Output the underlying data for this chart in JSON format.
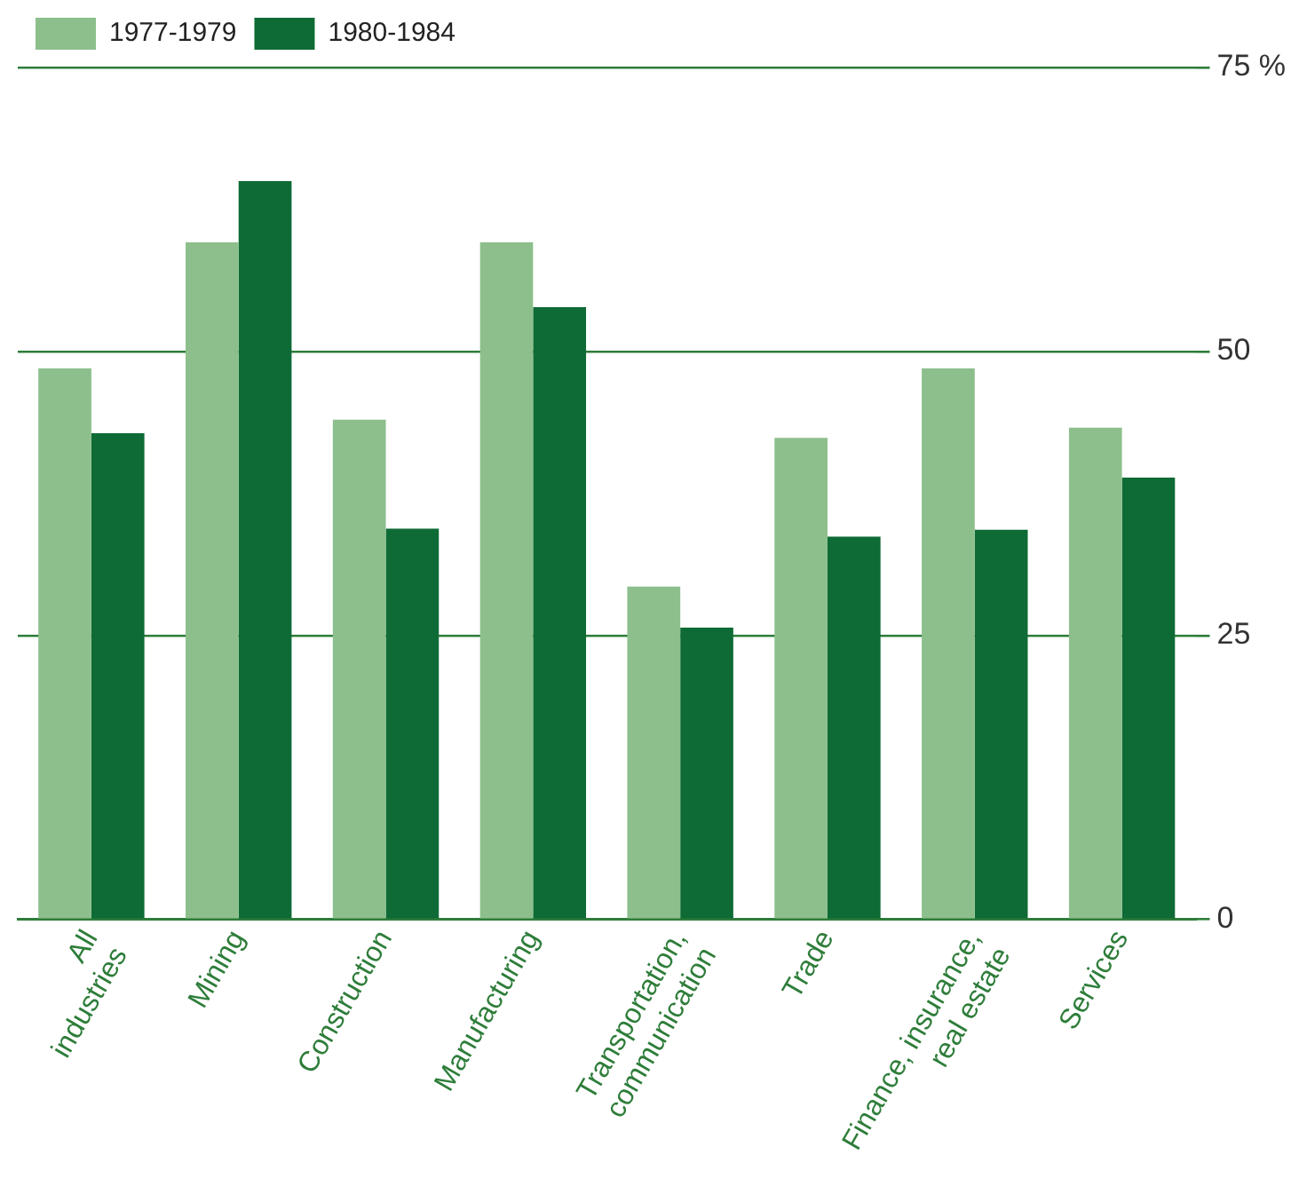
{
  "chart_data": {
    "type": "bar",
    "categories": [
      "All\nindustries",
      "Mining",
      "Construction",
      "Manufacturing",
      "Transportation,\ncommunication",
      "Trade",
      "Finance, insurance,\nreal estate",
      "Services"
    ],
    "series": [
      {
        "name": "1977-1979",
        "color": "#8cbf8c",
        "values": [
          48.5,
          59.6,
          44,
          59.6,
          29.3,
          42.4,
          48.5,
          43.3
        ]
      },
      {
        "name": "1980-1984",
        "color": "#0e6b35",
        "values": [
          42.8,
          65,
          34.4,
          53.9,
          25.7,
          33.7,
          34.3,
          38.9
        ]
      }
    ],
    "ylim": [
      0,
      75
    ],
    "yticks": [
      0,
      25,
      50,
      {
        "value": 75,
        "label": "75 %"
      }
    ],
    "grid": "y",
    "legend": "top left"
  }
}
